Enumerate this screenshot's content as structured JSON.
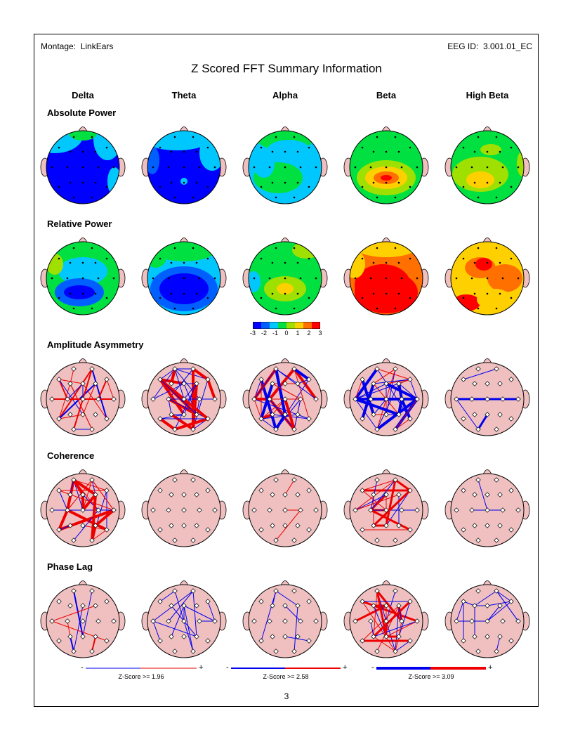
{
  "header": {
    "montage_label": "Montage:",
    "montage_value": "LinkEars",
    "eeg_id_label": "EEG ID:",
    "eeg_id_value": "3.001.01_EC",
    "title": "Z Scored FFT Summary Information"
  },
  "bands": [
    "Delta",
    "Theta",
    "Alpha",
    "Beta",
    "High Beta"
  ],
  "rows": [
    {
      "label": "Absolute Power",
      "type": "map"
    },
    {
      "label": "Relative Power",
      "type": "map"
    },
    {
      "label": "Amplitude Asymmetry",
      "type": "connect"
    },
    {
      "label": "Coherence",
      "type": "connect"
    },
    {
      "label": "Phase Lag",
      "type": "connect"
    }
  ],
  "colorbar": {
    "ticks": [
      "-3",
      "-2",
      "-1",
      "0",
      "1",
      "2",
      "3"
    ],
    "colors": [
      "#0000ff",
      "#0060ff",
      "#00c8ff",
      "#00e040",
      "#a0e000",
      "#ffd000",
      "#ff7000",
      "#ff0000"
    ]
  },
  "legends": [
    {
      "minus": "-",
      "plus": "+",
      "caption": "Z-Score >= 1.96"
    },
    {
      "minus": "-",
      "plus": "+",
      "caption": "Z-Score >= 2.58"
    },
    {
      "minus": "-",
      "plus": "+",
      "caption": "Z-Score >= 3.09"
    }
  ],
  "page_number": "3",
  "colors": {
    "head_fill": "#f0c0c0",
    "negative": "#0000ee",
    "positive": "#ee0000"
  }
}
